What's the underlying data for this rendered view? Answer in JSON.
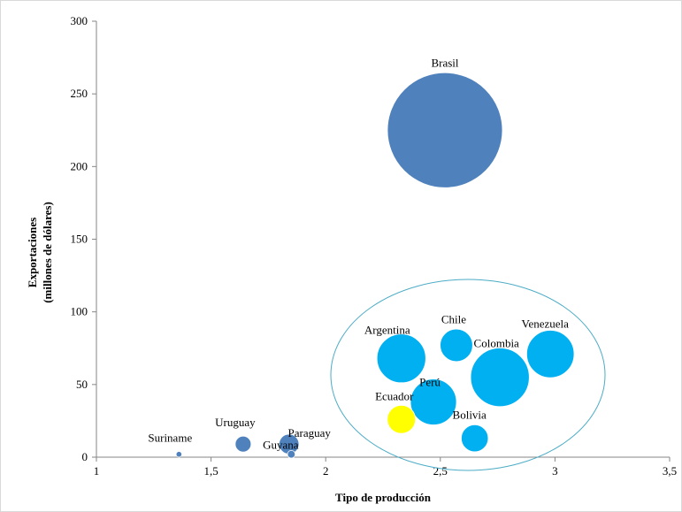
{
  "chart_data": {
    "type": "bubble",
    "title": "",
    "xlabel": "Tipo  de producción",
    "ylabel_line1": "Exportaciones",
    "ylabel_line2": "(millones  de  dólares)",
    "xlim": [
      1,
      3.5
    ],
    "ylim": [
      0,
      300
    ],
    "x_ticks": [
      1,
      1.5,
      2,
      2.5,
      3,
      3.5
    ],
    "x_tick_labels": [
      "1",
      "1,5",
      "2",
      "2,5",
      "3",
      "3,5"
    ],
    "y_ticks": [
      0,
      50,
      100,
      150,
      200,
      250,
      300
    ],
    "y_tick_labels": [
      "0",
      "50",
      "100",
      "150",
      "200",
      "250",
      "300"
    ],
    "grid": false,
    "legend": "none",
    "points": [
      {
        "name": "Brasil",
        "x": 2.52,
        "y": 225,
        "size": 100,
        "color": "#4f81bd"
      },
      {
        "name": "Argentina",
        "x": 2.33,
        "y": 68,
        "size": 18,
        "color": "#00b0f0"
      },
      {
        "name": "Chile",
        "x": 2.57,
        "y": 77,
        "size": 8,
        "color": "#00b0f0"
      },
      {
        "name": "Venezuela",
        "x": 2.98,
        "y": 71,
        "size": 17,
        "color": "#00b0f0"
      },
      {
        "name": "Colombia",
        "x": 2.76,
        "y": 55,
        "size": 26,
        "color": "#00b0f0"
      },
      {
        "name": "Perú",
        "x": 2.47,
        "y": 38,
        "size": 16,
        "color": "#00b0f0"
      },
      {
        "name": "Ecuador",
        "x": 2.33,
        "y": 26,
        "size": 6,
        "color": "#ffff00"
      },
      {
        "name": "Bolivia",
        "x": 2.65,
        "y": 13,
        "size": 5.5,
        "color": "#00b0f0"
      },
      {
        "name": "Uruguay",
        "x": 1.64,
        "y": 9,
        "size": 1.9,
        "color": "#4f81bd"
      },
      {
        "name": "Paraguay",
        "x": 1.84,
        "y": 9,
        "size": 3,
        "color": "#4f81bd"
      },
      {
        "name": "Guyana",
        "x": 1.85,
        "y": 2,
        "size": 0.45,
        "color": "#4f81bd"
      },
      {
        "name": "Suriname",
        "x": 1.36,
        "y": 2,
        "size": 0.25,
        "color": "#4f81bd"
      }
    ],
    "grouping_ellipse_color": "#4bacc6"
  }
}
